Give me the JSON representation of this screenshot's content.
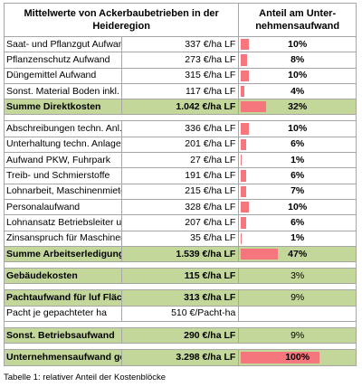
{
  "table": {
    "header_left": "Mittelwerte von Ackerbaubetrieben in der Heideregion",
    "header_right": "Anteil am Unter-nehmensaufwand",
    "bar_color": "#f6767d",
    "sum_color": "#c4d79b",
    "rows": [
      {
        "label": "Saat- und Pflanzgut Aufwand",
        "value": "337 €/ha LF",
        "pct": "10%",
        "share": 0.1
      },
      {
        "label": "Pflanzenschutz Aufwand",
        "value": "273 €/ha LF",
        "pct": "8%",
        "share": 0.08
      },
      {
        "label": "Düngemittel Aufwand",
        "value": "315 €/ha LF",
        "pct": "10%",
        "share": 0.1
      },
      {
        "label": "Sonst. Material Boden inkl. Hagelvers.",
        "value": "117 €/ha LF",
        "pct": "4%",
        "share": 0.04
      },
      {
        "label": "Summe Direktkosten",
        "value": "1.042 €/ha LF",
        "pct": "32%",
        "share": 0.32,
        "sum": true
      },
      {
        "gap": true
      },
      {
        "label": "Abschreibungen techn. Anl., Maschinen",
        "value": "336 €/ha LF",
        "pct": "10%",
        "share": 0.1
      },
      {
        "label": "Unterhaltung techn. Anlagen, Maschinen",
        "value": "201 €/ha LF",
        "pct": "6%",
        "share": 0.06
      },
      {
        "label": "Aufwand PKW, Fuhrpark",
        "value": "27 €/ha LF",
        "pct": "1%",
        "share": 0.01
      },
      {
        "label": "Treib- und Schmierstoffe",
        "value": "191 €/ha LF",
        "pct": "6%",
        "share": 0.06
      },
      {
        "label": "Lohnarbeit, Maschinenmiete",
        "value": "215 €/ha LF",
        "pct": "7%",
        "share": 0.07
      },
      {
        "label": "Personalaufwand",
        "value": "328 €/ha LF",
        "pct": "10%",
        "share": 0.1
      },
      {
        "label": "Lohnansatz Betriebsleiter u. Fam.AK",
        "value": "207 €/ha LF",
        "pct": "6%",
        "share": 0.06
      },
      {
        "label": "Zinsanspruch für Maschinenkapital",
        "value": "35 €/ha LF",
        "pct": "1%",
        "share": 0.01
      },
      {
        "label": "Summe Arbeitserledigungskosten",
        "value": "1.539 €/ha LF",
        "pct": "47%",
        "share": 0.47,
        "sum": true
      },
      {
        "gap": true
      },
      {
        "label": "Gebäudekosten",
        "value": "115 €/ha LF",
        "pct": "3%",
        "share": 0.0,
        "sum": true,
        "plain": true
      },
      {
        "gap": true
      },
      {
        "label": "Pachtaufwand für luf Flächen",
        "value": "313 €/ha LF",
        "pct": "9%",
        "share": 0.0,
        "sum": true,
        "plain": true
      },
      {
        "label": "Pacht je gepachteter ha",
        "value": "510 €/Pacht-ha",
        "pct": "",
        "share": 0.0,
        "white": true
      },
      {
        "gap": true
      },
      {
        "label": "Sonst. Betriebsaufwand",
        "value": "290 €/ha LF",
        "pct": "9%",
        "share": 0.0,
        "sum": true,
        "plain": true
      },
      {
        "gap": true
      },
      {
        "label": "Unternehmensaufwand gesamt",
        "value": "3.298 €/ha LF",
        "pct": "100%",
        "share": 1.0,
        "sum": true
      }
    ]
  },
  "caption": "Tabelle 1: relativer Anteil der Kostenblöcke"
}
